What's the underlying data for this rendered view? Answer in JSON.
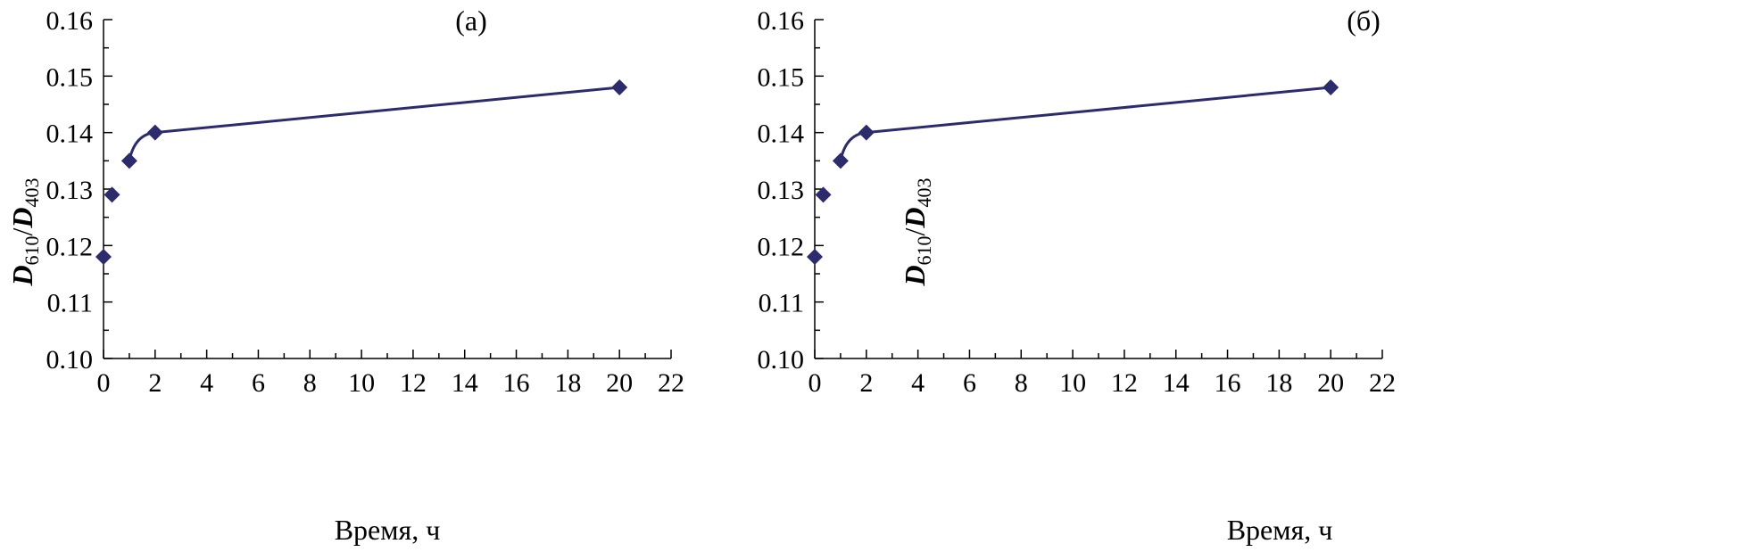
{
  "colors": {
    "series": "#2b2b6e",
    "axis": "#000000"
  },
  "chart_data": [
    {
      "type": "line",
      "title": "(а)",
      "xlabel": "Время, ч",
      "ylabel": {
        "d1": "D",
        "sub1": "610",
        "slash": "/",
        "d2": "D",
        "sub2": "403"
      },
      "xlim": [
        0,
        22
      ],
      "ylim": [
        0.1,
        0.16
      ],
      "xticks": [
        0,
        2,
        4,
        6,
        8,
        10,
        12,
        14,
        16,
        18,
        20,
        22
      ],
      "yticks": [
        "0.10",
        "0.11",
        "0.12",
        "0.13",
        "0.14",
        "0.15",
        "0.16"
      ],
      "grid": false,
      "legend": "none",
      "series": [
        {
          "marker": "diamond",
          "points": [
            {
              "x": 0.0,
              "y": 0.118
            },
            {
              "x": 0.33,
              "y": 0.129
            },
            {
              "x": 1.0,
              "y": 0.135
            },
            {
              "x": 2.0,
              "y": 0.14
            },
            {
              "x": 20.0,
              "y": 0.148
            }
          ],
          "line_from_index": 2
        }
      ]
    },
    {
      "type": "line",
      "title": "(б)",
      "xlabel": "Время, ч",
      "ylabel": {
        "d1": "D",
        "sub1": "610",
        "slash": "/",
        "d2": "D",
        "sub2": "403"
      },
      "xlim": [
        0,
        22
      ],
      "ylim": [
        0.1,
        0.16
      ],
      "xticks": [
        0,
        2,
        4,
        6,
        8,
        10,
        12,
        14,
        16,
        18,
        20,
        22
      ],
      "yticks": [
        "0.10",
        "0.11",
        "0.12",
        "0.13",
        "0.14",
        "0.15",
        "0.16"
      ],
      "grid": false,
      "legend": "none",
      "series": [
        {
          "marker": "diamond",
          "points": [
            {
              "x": 0.0,
              "y": 0.118
            },
            {
              "x": 0.33,
              "y": 0.129
            },
            {
              "x": 1.0,
              "y": 0.135
            },
            {
              "x": 2.0,
              "y": 0.14
            },
            {
              "x": 20.0,
              "y": 0.148
            }
          ],
          "line_from_index": 2
        }
      ]
    }
  ]
}
